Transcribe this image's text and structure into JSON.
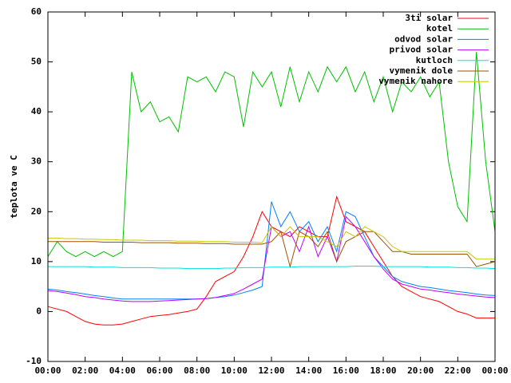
{
  "chart_data": {
    "type": "line",
    "ylabel": "teplota ve C",
    "x": [
      0,
      0.5,
      1,
      1.5,
      2,
      2.5,
      3,
      3.5,
      4,
      4.5,
      5,
      5.5,
      6,
      6.5,
      7,
      7.5,
      8,
      8.5,
      9,
      9.5,
      10,
      10.5,
      11,
      11.5,
      12,
      12.5,
      13,
      13.5,
      14,
      14.5,
      15,
      15.5,
      16,
      16.5,
      17,
      17.5,
      18,
      18.5,
      19,
      19.5,
      20,
      20.5,
      21,
      21.5,
      22,
      22.5,
      23,
      23.5,
      24
    ],
    "xlim": [
      0,
      24
    ],
    "xticks": [
      {
        "value": 0,
        "label": "00:00"
      },
      {
        "value": 2,
        "label": "02:00"
      },
      {
        "value": 4,
        "label": "04:00"
      },
      {
        "value": 6,
        "label": "06:00"
      },
      {
        "value": 8,
        "label": "08:00"
      },
      {
        "value": 10,
        "label": "10:00"
      },
      {
        "value": 12,
        "label": "12:00"
      },
      {
        "value": 14,
        "label": "14:00"
      },
      {
        "value": 16,
        "label": "16:00"
      },
      {
        "value": 18,
        "label": "18:00"
      },
      {
        "value": 20,
        "label": "20:00"
      },
      {
        "value": 22,
        "label": "22:00"
      },
      {
        "value": 24,
        "label": "00:00"
      }
    ],
    "ylim": [
      -10,
      60
    ],
    "yticks": [
      -10,
      0,
      10,
      20,
      30,
      40,
      50,
      60
    ],
    "legend": "top-right",
    "series": [
      {
        "name": "3ti solar",
        "color": "#ff0000",
        "values": [
          1,
          0.5,
          0,
          -1,
          -2,
          -2.5,
          -2.7,
          -2.7,
          -2.5,
          -2,
          -1.5,
          -1,
          -0.8,
          -0.6,
          -0.3,
          0,
          0.5,
          3,
          6,
          7,
          8,
          11,
          15,
          20,
          17,
          16,
          15,
          17,
          16,
          15,
          15,
          23,
          18,
          17,
          16,
          13,
          10,
          7,
          5,
          4,
          3,
          2.5,
          2,
          1,
          0,
          -0.5,
          -1.3,
          -1.3,
          -1.3
        ]
      },
      {
        "name": "kotel",
        "color": "#00c000",
        "values": [
          11,
          14,
          12,
          11,
          12,
          11,
          12,
          11,
          12,
          48,
          40,
          42,
          38,
          39,
          36,
          47,
          46,
          47,
          44,
          48,
          47,
          37,
          48,
          45,
          48,
          41,
          49,
          42,
          48,
          44,
          49,
          46,
          49,
          44,
          48,
          42,
          47,
          40,
          46,
          44,
          47,
          43,
          46,
          30,
          21,
          18,
          52,
          30,
          16
        ]
      },
      {
        "name": "odvod solar",
        "color": "#0080ff",
        "values": [
          4.5,
          4.3,
          4,
          3.8,
          3.5,
          3.2,
          3,
          2.7,
          2.5,
          2.5,
          2.5,
          2.5,
          2.5,
          2.5,
          2.5,
          2.5,
          2.5,
          2.6,
          2.8,
          3,
          3.3,
          3.8,
          4.3,
          5,
          22,
          17,
          20,
          16,
          18,
          14,
          17,
          12,
          20,
          19,
          15,
          11,
          9,
          7,
          6,
          5.5,
          5,
          4.8,
          4.5,
          4.2,
          4,
          3.8,
          3.5,
          3.3,
          3.2
        ]
      },
      {
        "name": "privod solar",
        "color": "#c000ff",
        "values": [
          4.2,
          4,
          3.7,
          3.4,
          3,
          2.8,
          2.5,
          2.3,
          2.1,
          2,
          2,
          2,
          2.1,
          2.2,
          2.3,
          2.4,
          2.5,
          2.6,
          2.8,
          3.2,
          3.6,
          4.5,
          5.5,
          6.5,
          17,
          15,
          16,
          12,
          17,
          11,
          15,
          10,
          19,
          17,
          14,
          11,
          8.5,
          6.5,
          5.5,
          5,
          4.5,
          4.3,
          4,
          3.8,
          3.5,
          3.3,
          3.1,
          2.9,
          2.8
        ]
      },
      {
        "name": "kutloch",
        "color": "#00e0e0",
        "values": [
          9,
          9,
          9,
          9,
          9,
          8.9,
          8.9,
          8.9,
          8.8,
          8.8,
          8.8,
          8.8,
          8.7,
          8.7,
          8.7,
          8.6,
          8.6,
          8.6,
          8.6,
          8.7,
          8.7,
          8.8,
          8.8,
          8.8,
          8.9,
          8.9,
          8.9,
          9,
          9,
          9,
          9,
          9,
          9,
          9.1,
          9.1,
          9.1,
          9,
          9,
          9,
          9,
          9,
          8.9,
          8.9,
          8.9,
          8.8,
          8.8,
          8.7,
          8.7,
          8.6
        ]
      },
      {
        "name": "vymenik dole",
        "color": "#a05000",
        "values": [
          14,
          14,
          14,
          14,
          14,
          14,
          13.9,
          13.9,
          13.9,
          13.9,
          13.8,
          13.8,
          13.8,
          13.8,
          13.7,
          13.7,
          13.7,
          13.6,
          13.6,
          13.6,
          13.5,
          13.5,
          13.5,
          13.5,
          14,
          16,
          9,
          16,
          15,
          13,
          16,
          10,
          14,
          15,
          16,
          16,
          14,
          12,
          12,
          11.5,
          11.5,
          11.5,
          11.5,
          11.5,
          11.5,
          11.5,
          9,
          9.5,
          10
        ]
      },
      {
        "name": "vymenik nahore",
        "color": "#c8c800",
        "values": [
          14.7,
          14.7,
          14.6,
          14.6,
          14.5,
          14.5,
          14.4,
          14.4,
          14.3,
          14.3,
          14.3,
          14.2,
          14.2,
          14.2,
          14.1,
          14.1,
          14.1,
          14,
          14,
          14,
          13.9,
          13.9,
          13.9,
          13.8,
          17,
          15,
          17,
          15,
          15,
          15,
          14,
          13,
          16,
          15,
          17,
          16,
          15,
          13,
          12,
          12,
          12,
          12,
          12,
          12,
          12,
          12,
          10.5,
          10.5,
          10.5
        ]
      }
    ]
  }
}
